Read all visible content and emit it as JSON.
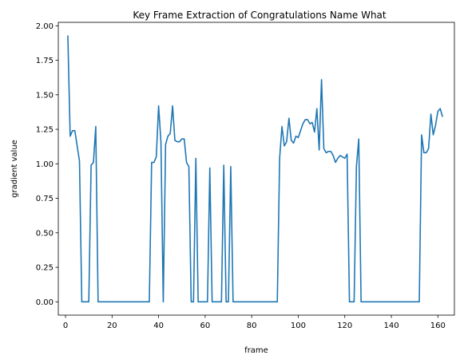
{
  "chart_data": {
    "type": "line",
    "title": "Key Frame Extraction of Congratulations Name What",
    "xlabel": "frame",
    "ylabel": "gradient value",
    "xlim": [
      -3.1,
      167.1
    ],
    "ylim": [
      -0.0965,
      2.025
    ],
    "xticks": [
      0,
      20,
      40,
      60,
      80,
      100,
      120,
      140,
      160
    ],
    "yticks": [
      0.0,
      0.25,
      0.5,
      0.75,
      1.0,
      1.25,
      1.5,
      1.75,
      2.0
    ],
    "xtick_labels": [
      "0",
      "20",
      "40",
      "60",
      "80",
      "100",
      "120",
      "140",
      "160"
    ],
    "ytick_labels": [
      "0.00",
      "0.25",
      "0.50",
      "0.75",
      "1.00",
      "1.25",
      "1.50",
      "1.75",
      "2.00"
    ],
    "grid": false,
    "series": [
      {
        "color": "#1f77b4",
        "x": [
          1,
          2,
          3,
          4,
          5,
          6,
          7,
          8,
          9,
          10,
          11,
          12,
          13,
          14,
          15,
          36,
          37,
          38,
          39,
          40,
          41,
          42,
          43,
          44,
          45,
          46,
          47,
          48,
          49,
          50,
          51,
          52,
          53,
          54,
          55,
          56,
          57,
          58,
          59,
          60,
          61,
          62,
          63,
          64,
          65,
          66,
          67,
          68,
          69,
          70,
          71,
          72,
          73,
          74,
          91,
          92,
          93,
          94,
          95,
          96,
          97,
          98,
          99,
          100,
          101,
          102,
          103,
          104,
          105,
          106,
          107,
          108,
          109,
          110,
          111,
          112,
          113,
          114,
          115,
          116,
          117,
          118,
          119,
          120,
          121,
          122,
          123,
          124,
          125,
          126,
          127,
          128,
          152,
          153,
          154,
          155,
          156,
          157,
          158,
          159,
          160,
          161,
          162
        ],
        "y": [
          1.93,
          1.2,
          1.24,
          1.24,
          1.13,
          1.02,
          0,
          0,
          0,
          0,
          0.99,
          1.01,
          1.27,
          0,
          0,
          0,
          1.01,
          1.01,
          1.05,
          1.42,
          1.16,
          0,
          1.14,
          1.2,
          1.22,
          1.42,
          1.17,
          1.16,
          1.16,
          1.18,
          1.18,
          1.01,
          0.98,
          0,
          0,
          1.04,
          0,
          0,
          0,
          0,
          0,
          0.97,
          0,
          0,
          0,
          0,
          0,
          0.99,
          0,
          0,
          0.98,
          0,
          0,
          0,
          0,
          1.04,
          1.27,
          1.13,
          1.16,
          1.33,
          1.17,
          1.15,
          1.2,
          1.19,
          1.24,
          1.29,
          1.32,
          1.32,
          1.29,
          1.3,
          1.23,
          1.4,
          1.1,
          1.61,
          1.11,
          1.08,
          1.09,
          1.09,
          1.06,
          1.01,
          1.04,
          1.06,
          1.05,
          1.04,
          1.07,
          0,
          0,
          0,
          0.98,
          1.18,
          0,
          0,
          0,
          1.21,
          1.08,
          1.08,
          1.11,
          1.36,
          1.21,
          1.28,
          1.38,
          1.4,
          1.34
        ]
      }
    ]
  }
}
